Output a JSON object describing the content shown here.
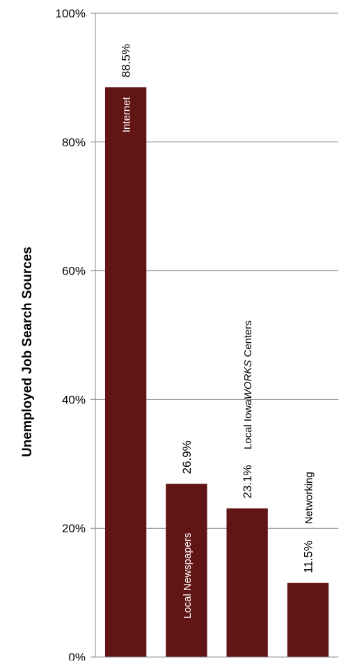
{
  "chart_data": {
    "type": "bar",
    "ylabel": "Unemployed Job Search Sources",
    "ylim": [
      0,
      100
    ],
    "grid": true,
    "y_ticks": [
      "0%",
      "20%",
      "40%",
      "60%",
      "80%",
      "100%"
    ],
    "y_tick_values": [
      0,
      20,
      40,
      60,
      80,
      100
    ],
    "categories": [
      "Internet",
      "Local Newspapers",
      "Local IowaWORKS Centers",
      "Networking"
    ],
    "category_label_parts": [
      [
        {
          "text": "Internet",
          "italic": false
        }
      ],
      [
        {
          "text": "Local Newspapers",
          "italic": false
        }
      ],
      [
        {
          "text": "Local Iowa",
          "italic": false
        },
        {
          "text": "WORKS",
          "italic": true
        },
        {
          "text": " Centers",
          "italic": false
        }
      ],
      [
        {
          "text": "Networking",
          "italic": false
        }
      ]
    ],
    "values": [
      88.5,
      26.9,
      23.1,
      11.5
    ],
    "value_labels": [
      "88.5%",
      "26.9%",
      "23.1%",
      "11.5%"
    ],
    "colors": {
      "bar": "#621515",
      "grid": "#888888",
      "axis": "#888888"
    }
  }
}
